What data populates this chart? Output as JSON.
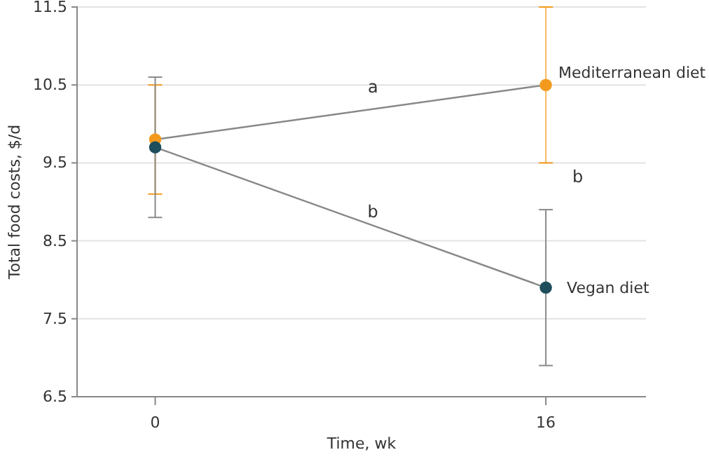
{
  "chart_data": {
    "type": "line",
    "xlabel": "Time, wk",
    "ylabel": "Total food costs, $/d",
    "x": [
      0,
      16
    ],
    "xlim": [
      -3.2,
      20.1
    ],
    "xticks": [
      0,
      16
    ],
    "ylim": [
      6.5,
      11.5
    ],
    "yticks": [
      6.5,
      7.5,
      8.5,
      9.5,
      10.5,
      11.5
    ],
    "grid": "y",
    "legend": false,
    "marker": "circle",
    "series": [
      {
        "name": "Mediterranean diet",
        "color": "#f39a1e",
        "values": [
          9.8,
          10.5
        ],
        "errors": [
          [
            9.1,
            10.5
          ],
          [
            9.5,
            11.5
          ]
        ]
      },
      {
        "name": "Vegan diet",
        "color": "#1e4d5c",
        "values": [
          9.7,
          7.9
        ],
        "errors": [
          [
            8.8,
            10.6
          ],
          [
            6.9,
            8.9
          ]
        ]
      }
    ],
    "annotations": [
      "a",
      "b",
      "b"
    ]
  }
}
